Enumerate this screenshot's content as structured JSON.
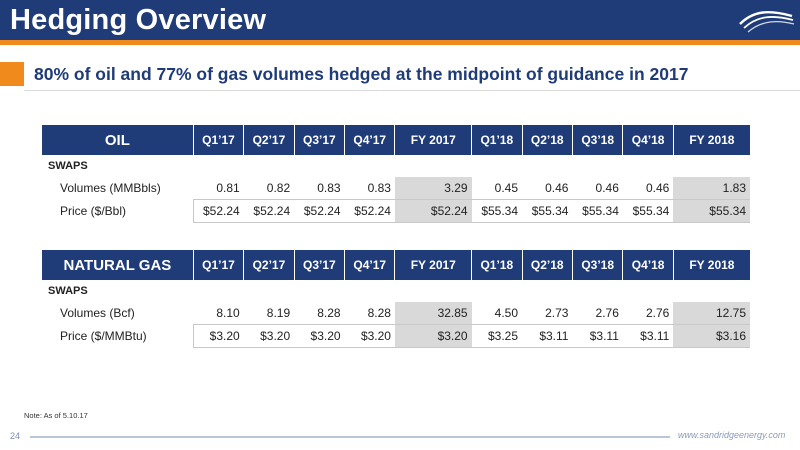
{
  "header": {
    "title": "Hedging Overview"
  },
  "headline": "80% of oil and 77% of gas volumes hedged at the midpoint of guidance in 2017",
  "periods": [
    "Q1’17",
    "Q2’17",
    "Q3’17",
    "Q4’17",
    "FY 2017",
    "Q1’18",
    "Q2’18",
    "Q3’18",
    "Q4’18",
    "FY 2018"
  ],
  "oil": {
    "section": "OIL",
    "category": "SWAPS",
    "rows": [
      {
        "label": "Volumes (MMBbls)",
        "values": [
          "0.81",
          "0.82",
          "0.83",
          "0.83",
          "3.29",
          "0.45",
          "0.46",
          "0.46",
          "0.46",
          "1.83"
        ]
      },
      {
        "label": "Price ($/Bbl)",
        "values": [
          "$52.24",
          "$52.24",
          "$52.24",
          "$52.24",
          "$52.24",
          "$55.34",
          "$55.34",
          "$55.34",
          "$55.34",
          "$55.34"
        ]
      }
    ]
  },
  "gas": {
    "section": "NATURAL GAS",
    "category": "SWAPS",
    "rows": [
      {
        "label": "Volumes (Bcf)",
        "values": [
          "8.10",
          "8.19",
          "8.28",
          "8.28",
          "32.85",
          "4.50",
          "2.73",
          "2.76",
          "2.76",
          "12.75"
        ]
      },
      {
        "label": "Price ($/MMBtu)",
        "values": [
          "$3.20",
          "$3.20",
          "$3.20",
          "$3.20",
          "$3.20",
          "$3.25",
          "$3.11",
          "$3.11",
          "$3.11",
          "$3.16"
        ]
      }
    ]
  },
  "note": "Note: As of 5.10.17",
  "footer": {
    "page_number": "24",
    "url": "www.sandridgeenergy.com"
  },
  "colors": {
    "brand_blue": "#1f3c78",
    "accent_orange": "#f08a1c",
    "fy_highlight": "#d9d9d9"
  },
  "icons": {
    "logo": "wave-logo-icon"
  }
}
